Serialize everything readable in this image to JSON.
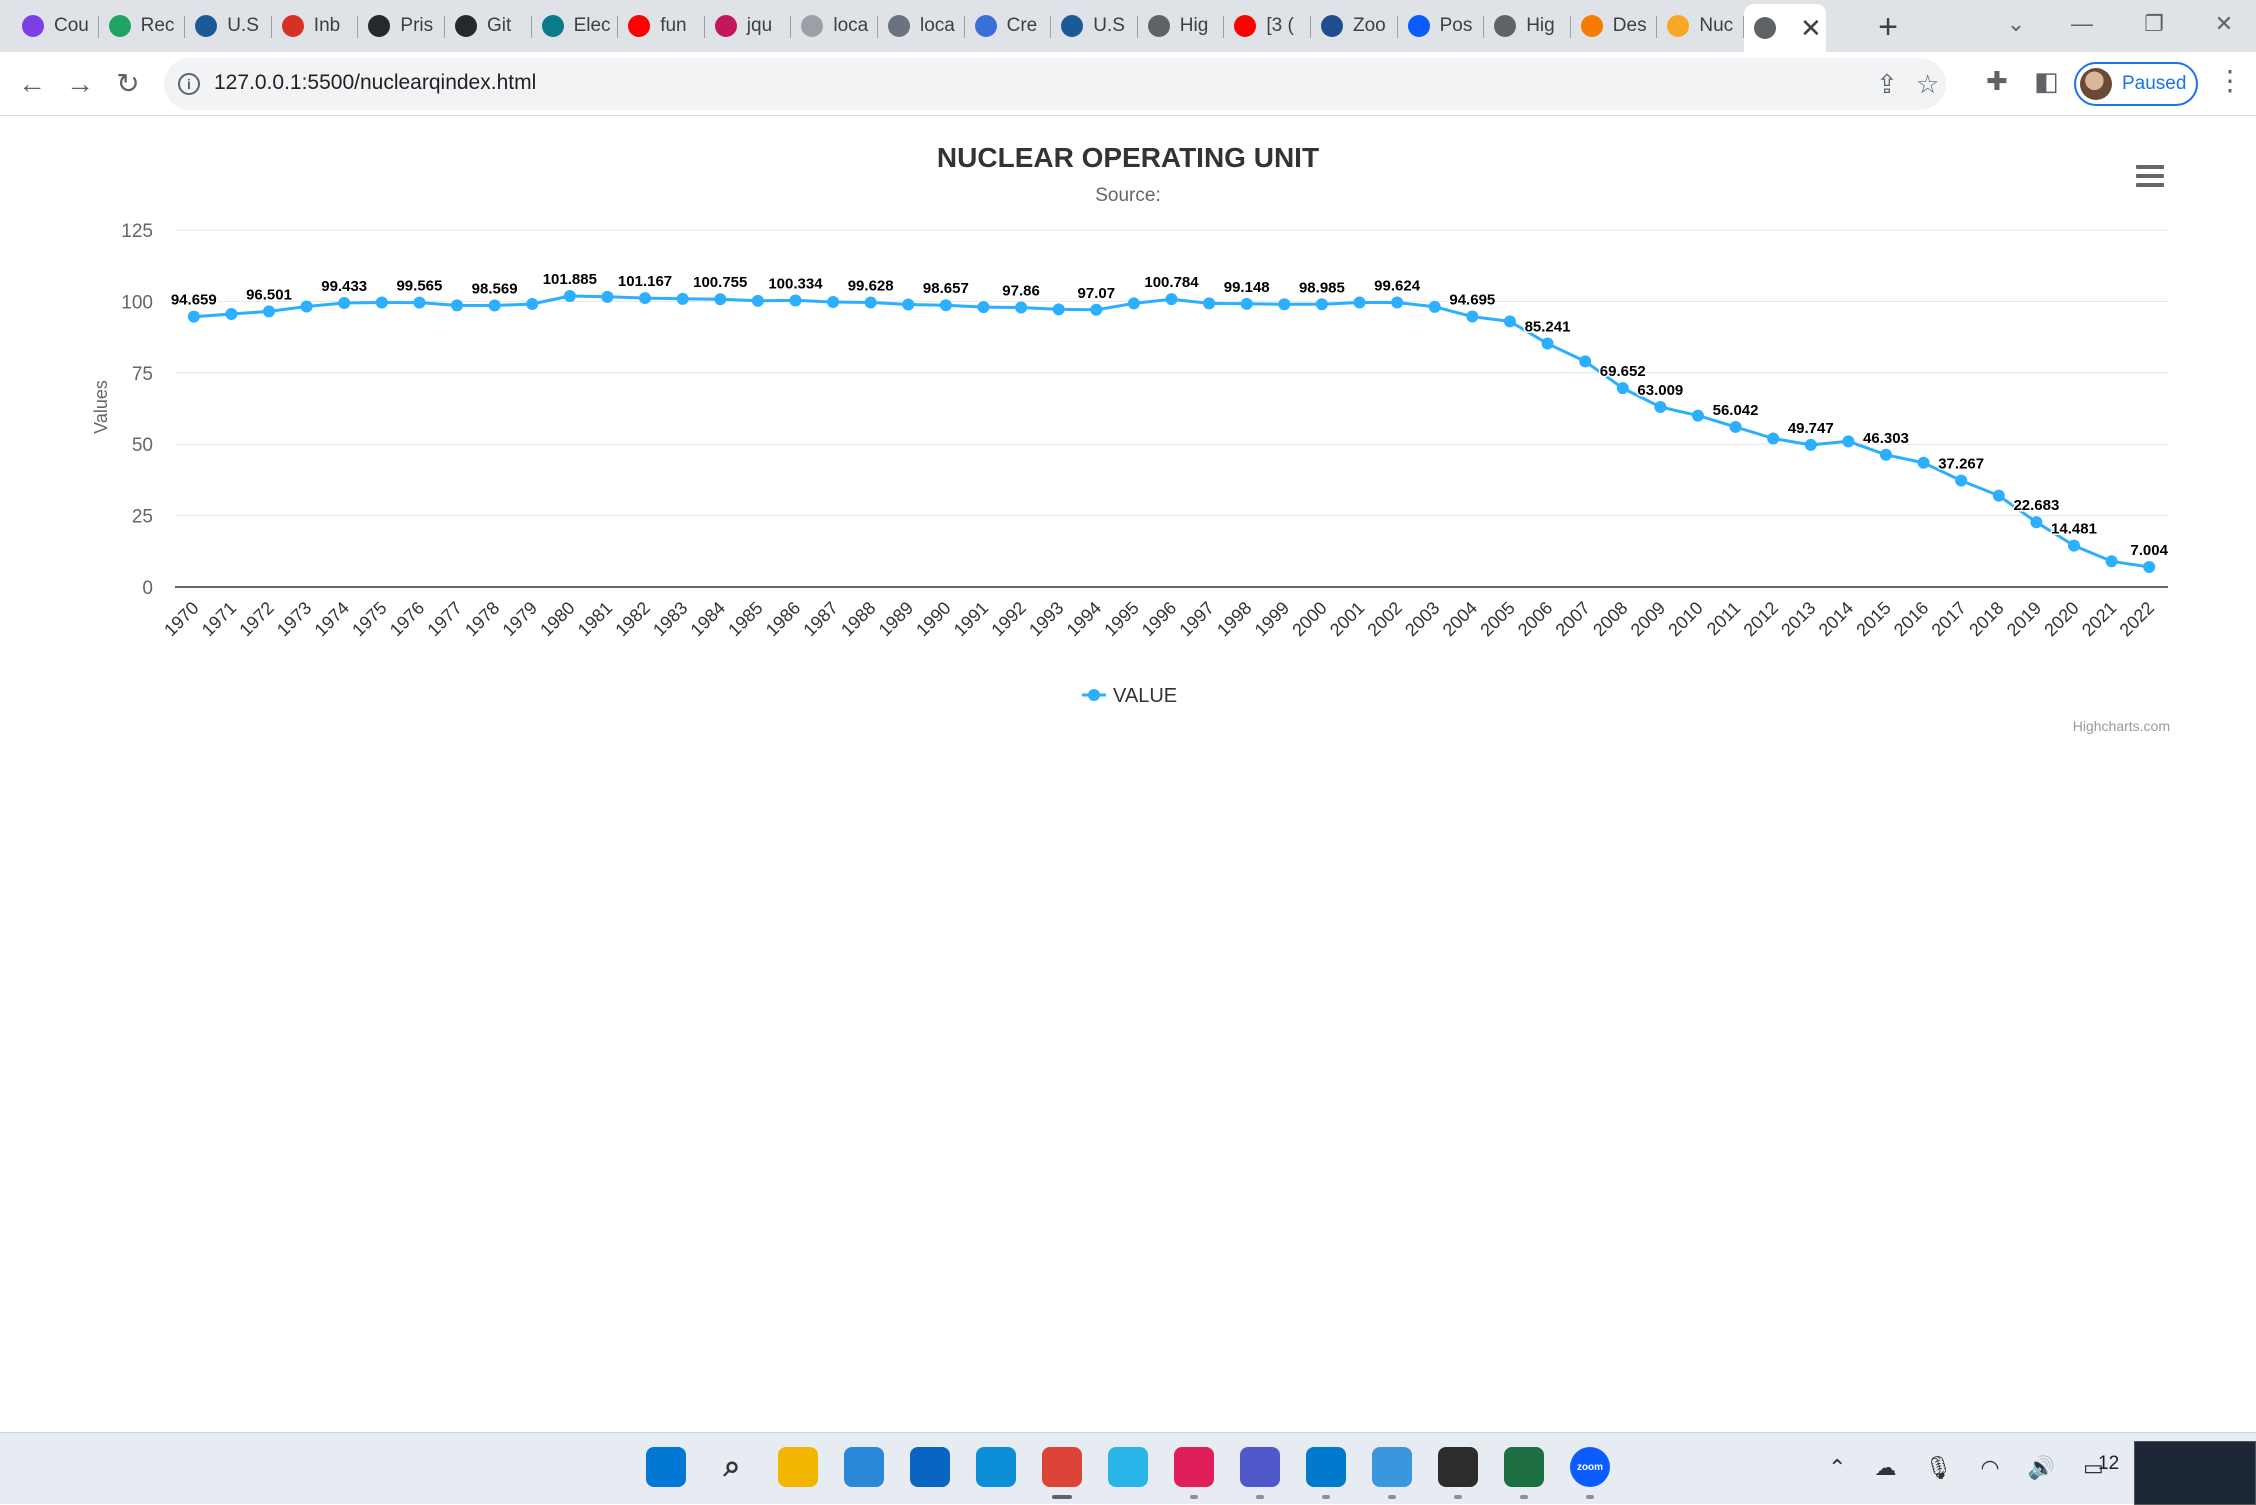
{
  "browser": {
    "tabs": [
      {
        "label": "Cou",
        "icon": "purple-circle-icon",
        "color": "#7b3fe4"
      },
      {
        "label": "Rec",
        "icon": "google-drive-icon",
        "color": "#1fa463"
      },
      {
        "label": "U.S",
        "icon": "eia-icon",
        "color": "#1a5a96"
      },
      {
        "label": "Inb",
        "icon": "gmail-icon",
        "color": "#d93025"
      },
      {
        "label": "Pris",
        "icon": "github-icon",
        "color": "#24292e"
      },
      {
        "label": "Git",
        "icon": "github-icon",
        "color": "#24292e"
      },
      {
        "label": "Elec",
        "icon": "e-square-icon",
        "color": "#0b7a8a"
      },
      {
        "label": "fun",
        "icon": "youtube-icon",
        "color": "#ff0000"
      },
      {
        "label": "jqu",
        "icon": "code-icon",
        "color": "#c2185b"
      },
      {
        "label": "loca",
        "icon": "loading-icon",
        "color": "#9aa0a6"
      },
      {
        "label": "loca",
        "icon": "page-icon",
        "color": "#6b7280"
      },
      {
        "label": "Cre",
        "icon": "triangle-icon",
        "color": "#3b6fd8"
      },
      {
        "label": "U.S",
        "icon": "eia-icon",
        "color": "#1a5a96"
      },
      {
        "label": "Hig",
        "icon": "globe-icon",
        "color": "#5f6368"
      },
      {
        "label": "[3 (",
        "icon": "youtube-icon",
        "color": "#ff0000"
      },
      {
        "label": "Zoo",
        "icon": "gw-icon",
        "color": "#1f4e8c"
      },
      {
        "label": "Pos",
        "icon": "zm-icon",
        "color": "#0b5cff"
      },
      {
        "label": "Hig",
        "icon": "globe-icon",
        "color": "#5f6368"
      },
      {
        "label": "Des",
        "icon": "loading-orange-icon",
        "color": "#f57c00"
      },
      {
        "label": "Nuc",
        "icon": "notebook-icon",
        "color": "#f9a825"
      }
    ],
    "active_tab_close": "✕",
    "new_tab": "+",
    "url_host": "127.0.0.1",
    "url_path": ":5500/nuclearqindex.html",
    "profile_label": "Paused"
  },
  "chart_data": {
    "type": "line",
    "title": "NUCLEAR OPERATING UNIT",
    "subtitle": "Source:",
    "ylabel": "Values",
    "ylim": [
      0,
      125
    ],
    "yticks": [
      0,
      25,
      50,
      75,
      100,
      125
    ],
    "series": [
      {
        "name": "VALUE",
        "color": "#2caffe"
      }
    ],
    "credits": "Highcharts.com",
    "points": [
      {
        "x": "1970",
        "y": 94.659,
        "label": "94.659"
      },
      {
        "x": "1971",
        "y": 95.6,
        "label": ""
      },
      {
        "x": "1972",
        "y": 96.501,
        "label": "96.501"
      },
      {
        "x": "1973",
        "y": 98.2,
        "label": ""
      },
      {
        "x": "1974",
        "y": 99.433,
        "label": "99.433"
      },
      {
        "x": "1975",
        "y": 99.6,
        "label": ""
      },
      {
        "x": "1976",
        "y": 99.565,
        "label": "99.565"
      },
      {
        "x": "1977",
        "y": 98.6,
        "label": ""
      },
      {
        "x": "1978",
        "y": 98.569,
        "label": "98.569"
      },
      {
        "x": "1979",
        "y": 99.1,
        "label": ""
      },
      {
        "x": "1980",
        "y": 101.885,
        "label": "101.885"
      },
      {
        "x": "1981",
        "y": 101.6,
        "label": ""
      },
      {
        "x": "1982",
        "y": 101.167,
        "label": "101.167"
      },
      {
        "x": "1983",
        "y": 100.9,
        "label": ""
      },
      {
        "x": "1984",
        "y": 100.755,
        "label": "100.755"
      },
      {
        "x": "1985",
        "y": 100.2,
        "label": ""
      },
      {
        "x": "1986",
        "y": 100.334,
        "label": "100.334"
      },
      {
        "x": "1987",
        "y": 99.8,
        "label": ""
      },
      {
        "x": "1988",
        "y": 99.628,
        "label": "99.628"
      },
      {
        "x": "1989",
        "y": 98.9,
        "label": ""
      },
      {
        "x": "1990",
        "y": 98.657,
        "label": "98.657"
      },
      {
        "x": "1991",
        "y": 98.0,
        "label": ""
      },
      {
        "x": "1992",
        "y": 97.86,
        "label": "97.86"
      },
      {
        "x": "1993",
        "y": 97.2,
        "label": ""
      },
      {
        "x": "1994",
        "y": 97.07,
        "label": "97.07"
      },
      {
        "x": "1995",
        "y": 99.3,
        "label": ""
      },
      {
        "x": "1996",
        "y": 100.784,
        "label": "100.784"
      },
      {
        "x": "1997",
        "y": 99.3,
        "label": ""
      },
      {
        "x": "1998",
        "y": 99.148,
        "label": "99.148"
      },
      {
        "x": "1999",
        "y": 99.0,
        "label": ""
      },
      {
        "x": "2000",
        "y": 98.985,
        "label": "98.985"
      },
      {
        "x": "2001",
        "y": 99.6,
        "label": ""
      },
      {
        "x": "2002",
        "y": 99.624,
        "label": "99.624"
      },
      {
        "x": "2003",
        "y": 98.1,
        "label": ""
      },
      {
        "x": "2004",
        "y": 94.695,
        "label": "94.695"
      },
      {
        "x": "2005",
        "y": 93.0,
        "label": ""
      },
      {
        "x": "2006",
        "y": 85.241,
        "label": "85.241"
      },
      {
        "x": "2007",
        "y": 79.0,
        "label": ""
      },
      {
        "x": "2008",
        "y": 69.652,
        "label": "69.652"
      },
      {
        "x": "2009",
        "y": 63.009,
        "label": "63.009"
      },
      {
        "x": "2010",
        "y": 60.0,
        "label": ""
      },
      {
        "x": "2011",
        "y": 56.042,
        "label": "56.042"
      },
      {
        "x": "2012",
        "y": 52.0,
        "label": ""
      },
      {
        "x": "2013",
        "y": 49.747,
        "label": "49.747"
      },
      {
        "x": "2014",
        "y": 51.0,
        "label": ""
      },
      {
        "x": "2015",
        "y": 46.303,
        "label": "46.303"
      },
      {
        "x": "2016",
        "y": 43.5,
        "label": ""
      },
      {
        "x": "2017",
        "y": 37.267,
        "label": "37.267"
      },
      {
        "x": "2018",
        "y": 32.0,
        "label": ""
      },
      {
        "x": "2019",
        "y": 22.683,
        "label": "22.683"
      },
      {
        "x": "2020",
        "y": 14.481,
        "label": "14.481"
      },
      {
        "x": "2021",
        "y": 9.0,
        "label": ""
      },
      {
        "x": "2022",
        "y": 7.004,
        "label": "7.004"
      }
    ]
  },
  "taskbar": {
    "apps": [
      {
        "name": "start-icon",
        "color": "#0078d4"
      },
      {
        "name": "search-icon",
        "color": "#333333"
      },
      {
        "name": "file-explorer-icon",
        "color": "#f2b600"
      },
      {
        "name": "store-icon",
        "color": "#2b88d8"
      },
      {
        "name": "mail-icon",
        "color": "#0a64c2"
      },
      {
        "name": "edge-icon",
        "color": "#0c8fd6"
      },
      {
        "name": "chrome-icon",
        "color": "#db4437"
      },
      {
        "name": "snowflake-icon",
        "color": "#29b5e8"
      },
      {
        "name": "slack-icon",
        "color": "#e01e5a"
      },
      {
        "name": "teams-icon",
        "color": "#5059c9"
      },
      {
        "name": "vscode-icon",
        "color": "#007acc"
      },
      {
        "name": "notepad-icon",
        "color": "#3a96dd"
      },
      {
        "name": "terminal-icon",
        "color": "#2d2d2d"
      },
      {
        "name": "excel-icon",
        "color": "#1d6f42"
      },
      {
        "name": "zoom-icon",
        "color": "#0b5cff"
      }
    ],
    "zoom_label": "zoom",
    "clock": "12"
  }
}
